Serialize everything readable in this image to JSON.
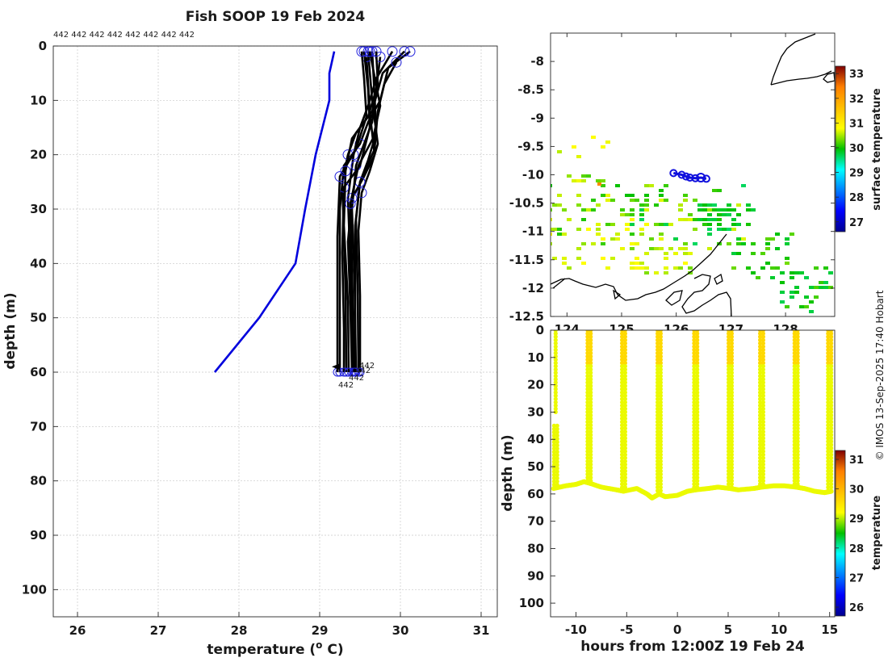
{
  "chart_data": [
    {
      "type": "line",
      "id": "profile",
      "title": "Fish SOOP 19 Feb 2024",
      "xlabel": "temperature (",
      "xlabel_sup": "o",
      "xlabel_tail": " C)",
      "ylabel": "depth (m)",
      "xlim": [
        25.7,
        31.2
      ],
      "ylim": [
        105,
        0
      ],
      "xticks": [
        26,
        27,
        28,
        29,
        30,
        31
      ],
      "yticks": [
        0,
        10,
        20,
        30,
        40,
        50,
        60,
        70,
        80,
        90,
        100
      ],
      "grid": true,
      "top_annotation": "442 442 442 442 442 442 442 442",
      "bottom_annotations": [
        "442",
        "442",
        "442",
        "442"
      ],
      "climatology": {
        "color": "#0000dd",
        "points": [
          [
            29.18,
            1
          ],
          [
            29.12,
            5
          ],
          [
            29.12,
            10
          ],
          [
            28.95,
            20
          ],
          [
            28.82,
            30
          ],
          [
            28.7,
            40
          ],
          [
            28.25,
            50
          ],
          [
            27.7,
            60
          ]
        ]
      },
      "profiles": {
        "color": "#000000",
        "marker_color": "#2222dd",
        "series": [
          {
            "points": [
              [
                30.12,
                1
              ],
              [
                29.85,
                4
              ],
              [
                29.75,
                10
              ],
              [
                29.6,
                14
              ],
              [
                29.5,
                18
              ],
              [
                29.3,
                22
              ],
              [
                29.25,
                30
              ],
              [
                29.25,
                40
              ],
              [
                29.25,
                50
              ],
              [
                29.25,
                60
              ]
            ]
          },
          {
            "points": [
              [
                30.05,
                1
              ],
              [
                29.78,
                5
              ],
              [
                29.65,
                12
              ],
              [
                29.45,
                16
              ],
              [
                29.35,
                20
              ],
              [
                29.28,
                25
              ],
              [
                29.3,
                35
              ],
              [
                29.32,
                45
              ],
              [
                29.33,
                60
              ]
            ]
          },
          {
            "points": [
              [
                29.9,
                1
              ],
              [
                29.7,
                6
              ],
              [
                29.6,
                11
              ],
              [
                29.5,
                15
              ],
              [
                29.42,
                20
              ],
              [
                29.35,
                28
              ],
              [
                29.38,
                40
              ],
              [
                29.4,
                50
              ],
              [
                29.42,
                60
              ]
            ]
          },
          {
            "points": [
              [
                29.75,
                2
              ],
              [
                29.7,
                8
              ],
              [
                29.65,
                14
              ],
              [
                29.55,
                18
              ],
              [
                29.45,
                22
              ],
              [
                29.4,
                30
              ],
              [
                29.43,
                42
              ],
              [
                29.45,
                60
              ]
            ]
          },
          {
            "points": [
              [
                29.65,
                1
              ],
              [
                29.68,
                9
              ],
              [
                29.7,
                16
              ],
              [
                29.6,
                21
              ],
              [
                29.5,
                25
              ],
              [
                29.45,
                32
              ],
              [
                29.47,
                44
              ],
              [
                29.48,
                60
              ]
            ]
          },
          {
            "points": [
              [
                29.6,
                1
              ],
              [
                29.65,
                10
              ],
              [
                29.72,
                18
              ],
              [
                29.62,
                23
              ],
              [
                29.52,
                27
              ],
              [
                29.48,
                34
              ],
              [
                29.5,
                46
              ],
              [
                29.5,
                60
              ]
            ]
          },
          {
            "points": [
              [
                29.58,
                2
              ],
              [
                29.62,
                12
              ],
              [
                29.68,
                20
              ],
              [
                29.55,
                24
              ],
              [
                29.4,
                28
              ],
              [
                29.35,
                36
              ],
              [
                29.38,
                48
              ],
              [
                29.4,
                60
              ]
            ]
          },
          {
            "points": [
              [
                29.55,
                1
              ],
              [
                29.6,
                8
              ],
              [
                29.62,
                15
              ],
              [
                29.5,
                22
              ],
              [
                29.3,
                26
              ],
              [
                29.28,
                38
              ],
              [
                29.3,
                52
              ],
              [
                29.3,
                60
              ]
            ]
          },
          {
            "points": [
              [
                29.52,
                1
              ],
              [
                29.55,
                6
              ],
              [
                29.58,
                13
              ],
              [
                29.45,
                19
              ],
              [
                29.25,
                24
              ],
              [
                29.22,
                35
              ],
              [
                29.22,
                50
              ],
              [
                29.22,
                60
              ]
            ]
          },
          {
            "points": [
              [
                29.95,
                3
              ],
              [
                29.8,
                7
              ],
              [
                29.72,
                12
              ],
              [
                29.68,
                19
              ],
              [
                29.5,
                25
              ],
              [
                29.44,
                33
              ],
              [
                29.44,
                46
              ],
              [
                29.44,
                60
              ]
            ]
          },
          {
            "points": [
              [
                29.7,
                1
              ],
              [
                29.72,
                7
              ],
              [
                29.6,
                13
              ],
              [
                29.4,
                17
              ],
              [
                29.32,
                23
              ],
              [
                29.3,
                33
              ],
              [
                29.35,
                47
              ],
              [
                29.36,
                60
              ]
            ]
          },
          {
            "points": [
              [
                29.62,
                1
              ],
              [
                29.75,
                11
              ],
              [
                29.66,
                17
              ],
              [
                29.48,
                22
              ],
              [
                29.38,
                29
              ],
              [
                29.4,
                40
              ],
              [
                29.42,
                55
              ],
              [
                29.43,
                60
              ]
            ]
          }
        ]
      }
    },
    {
      "type": "heatmap",
      "id": "map",
      "xlim": [
        123.7,
        128.9
      ],
      "ylim": [
        -12.5,
        -7.5
      ],
      "xticks": [
        124,
        125,
        126,
        127,
        128
      ],
      "yticks": [
        -8,
        -8.5,
        -9,
        -9.5,
        -10,
        -10.5,
        -11,
        -11.5,
        -12,
        -12.5
      ],
      "colorbar_label": "surface temperature",
      "colorbar_range": [
        26.6,
        33.3
      ],
      "colorbar_ticks": [
        27,
        28,
        29,
        30,
        31,
        32,
        33
      ],
      "track_color": "#1010dd",
      "track": [
        [
          125.95,
          -9.97
        ],
        [
          126.1,
          -10.0
        ],
        [
          126.18,
          -10.03
        ],
        [
          126.25,
          -10.05
        ],
        [
          126.35,
          -10.06
        ],
        [
          126.45,
          -10.05
        ],
        [
          126.55,
          -10.07
        ]
      ]
    },
    {
      "type": "scatter",
      "id": "section",
      "xlabel": "hours from 12:00Z 19 Feb 24",
      "ylabel": "depth (m)",
      "xlim": [
        -12.5,
        15.5
      ],
      "ylim": [
        105,
        0
      ],
      "xticks": [
        -10,
        -5,
        0,
        5,
        10,
        15
      ],
      "yticks": [
        0,
        10,
        20,
        30,
        40,
        50,
        60,
        70,
        80,
        90,
        100
      ],
      "colorbar_label": "temperature",
      "colorbar_range": [
        25.7,
        31.3
      ],
      "colorbar_ticks": [
        26,
        27,
        28,
        29,
        30,
        31
      ],
      "casts_hours": [
        -12.0,
        -8.7,
        -5.3,
        -1.8,
        1.8,
        5.2,
        8.3,
        11.7,
        15.0
      ],
      "cast_top_depth": [
        35,
        0,
        0,
        0,
        0,
        0,
        0,
        0,
        0
      ],
      "bottom_depth_trace": [
        [
          -12.2,
          58
        ],
        [
          -11,
          57
        ],
        [
          -10,
          56.5
        ],
        [
          -9.2,
          55.5
        ],
        [
          -8.7,
          56
        ],
        [
          -7.5,
          57.5
        ],
        [
          -6,
          58.5
        ],
        [
          -5.3,
          59
        ],
        [
          -4,
          58
        ],
        [
          -3,
          60
        ],
        [
          -2.5,
          61.5
        ],
        [
          -1.8,
          60
        ],
        [
          -1.2,
          61
        ],
        [
          0,
          60.5
        ],
        [
          1,
          59
        ],
        [
          1.8,
          58.5
        ],
        [
          3,
          58
        ],
        [
          4,
          57.5
        ],
        [
          5.2,
          58
        ],
        [
          6,
          58.5
        ],
        [
          7.5,
          58
        ],
        [
          8.3,
          57.5
        ],
        [
          9.5,
          57
        ],
        [
          10.5,
          57
        ],
        [
          11.7,
          57.5
        ],
        [
          12.5,
          58
        ],
        [
          13.5,
          59
        ],
        [
          14.5,
          59.5
        ],
        [
          15.2,
          59
        ]
      ]
    }
  ],
  "copyright": "© IMOS 13-Sep-2025 17:40 Hobart"
}
